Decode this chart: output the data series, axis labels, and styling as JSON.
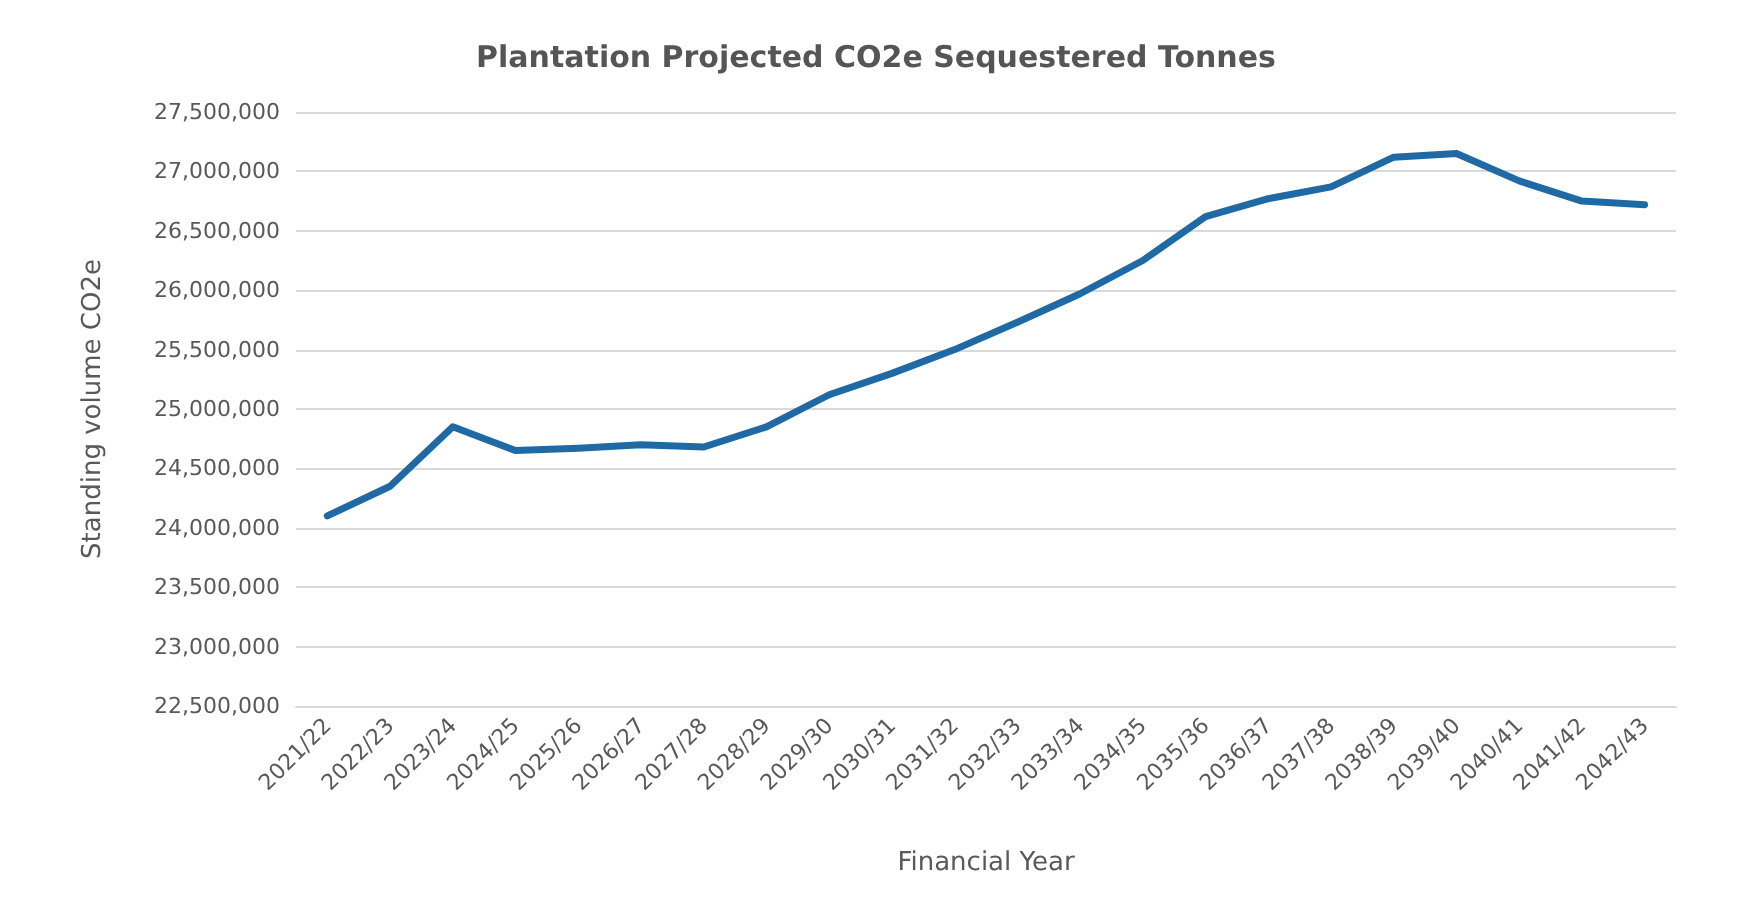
{
  "chart_data": {
    "type": "line",
    "title": "Plantation Projected CO2e Sequestered Tonnes",
    "xlabel": "Financial Year",
    "ylabel": "Standing volume CO2e",
    "categories": [
      "2021/22",
      "2022/23",
      "2023/24",
      "2024/25",
      "2025/26",
      "2026/27",
      "2027/28",
      "2028/29",
      "2029/30",
      "2030/31",
      "2031/32",
      "2032/33",
      "2033/34",
      "2034/35",
      "2035/36",
      "2036/37",
      "2037/38",
      "2038/39",
      "2039/40",
      "2040/41",
      "2041/42",
      "2042/43"
    ],
    "series": [
      {
        "color": "#1f6aa5",
        "values": [
          24100000,
          24350000,
          24850000,
          24650000,
          24670000,
          24700000,
          24680000,
          24850000,
          25120000,
          25300000,
          25500000,
          25730000,
          25970000,
          26250000,
          26620000,
          26770000,
          26870000,
          27120000,
          27150000,
          26920000,
          26750000,
          26720000
        ]
      }
    ],
    "ylim": [
      22500000,
      27500000
    ],
    "yticks": [
      {
        "value": 22500000,
        "label": "22,500,000"
      },
      {
        "value": 23000000,
        "label": "23,000,000"
      },
      {
        "value": 23500000,
        "label": "23,500,000"
      },
      {
        "value": 24000000,
        "label": "24,000,000"
      },
      {
        "value": 24500000,
        "label": "24,500,000"
      },
      {
        "value": 25000000,
        "label": "25,000,000"
      },
      {
        "value": 25500000,
        "label": "25,500,000"
      },
      {
        "value": 26000000,
        "label": "26,000,000"
      },
      {
        "value": 26500000,
        "label": "26,500,000"
      },
      {
        "value": 27000000,
        "label": "27,000,000"
      },
      {
        "value": 27500000,
        "label": "27,500,000"
      }
    ],
    "grid": "y",
    "marker": "none",
    "line_style": "solid"
  }
}
